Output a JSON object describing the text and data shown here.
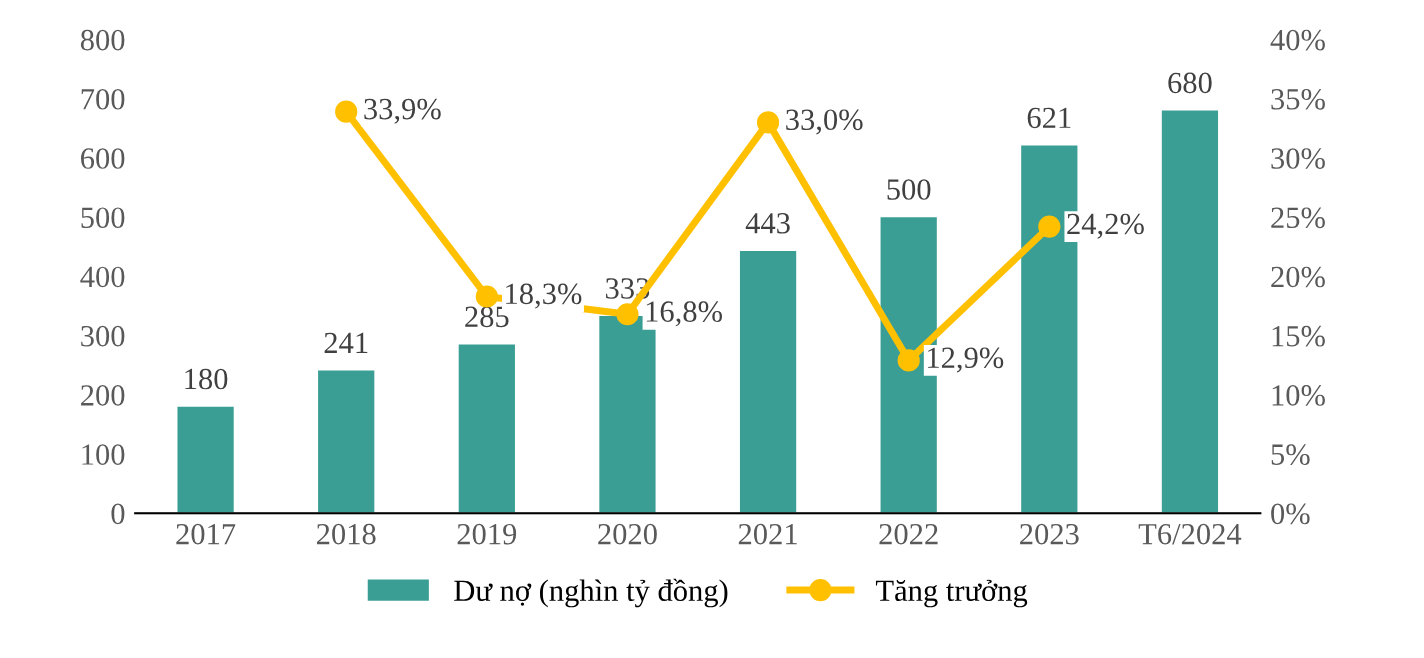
{
  "chart_data": {
    "type": "bar",
    "categories": [
      "2017",
      "2018",
      "2019",
      "2020",
      "2021",
      "2022",
      "2023",
      "T6/2024"
    ],
    "series": [
      {
        "name": "Dư nợ (nghìn tỷ đồng)",
        "color": "#3a9e95",
        "values": [
          180,
          241,
          285,
          333,
          443,
          500,
          621,
          680
        ],
        "value_labels": [
          "180",
          "241",
          "285",
          "333",
          "443",
          "500",
          "621",
          "680"
        ]
      },
      {
        "name": "Tăng trưởng",
        "type": "line",
        "axis": "y2",
        "color": "#ffc000",
        "marker": "circle",
        "values": [
          null,
          33.9,
          18.3,
          16.8,
          33.0,
          12.9,
          24.2,
          null
        ],
        "value_labels": [
          null,
          "33,9%",
          "18,3%",
          "16,8%",
          "33,0%",
          "12,9%",
          "24,2%",
          null
        ]
      }
    ],
    "ylim": [
      0,
      800
    ],
    "yticks": [
      0,
      100,
      200,
      300,
      400,
      500,
      600,
      700,
      800
    ],
    "y2lim": [
      0,
      40
    ],
    "y2ticks": [
      {
        "value": 0,
        "label": "0%"
      },
      {
        "value": 5,
        "label": "5%"
      },
      {
        "value": 10,
        "label": "10%"
      },
      {
        "value": 15,
        "label": "15%"
      },
      {
        "value": 20,
        "label": "20%"
      },
      {
        "value": 25,
        "label": "25%"
      },
      {
        "value": 30,
        "label": "30%"
      },
      {
        "value": 35,
        "label": "35%"
      },
      {
        "value": 40,
        "label": "40%"
      }
    ],
    "grid": false,
    "legend": "bottom"
  }
}
